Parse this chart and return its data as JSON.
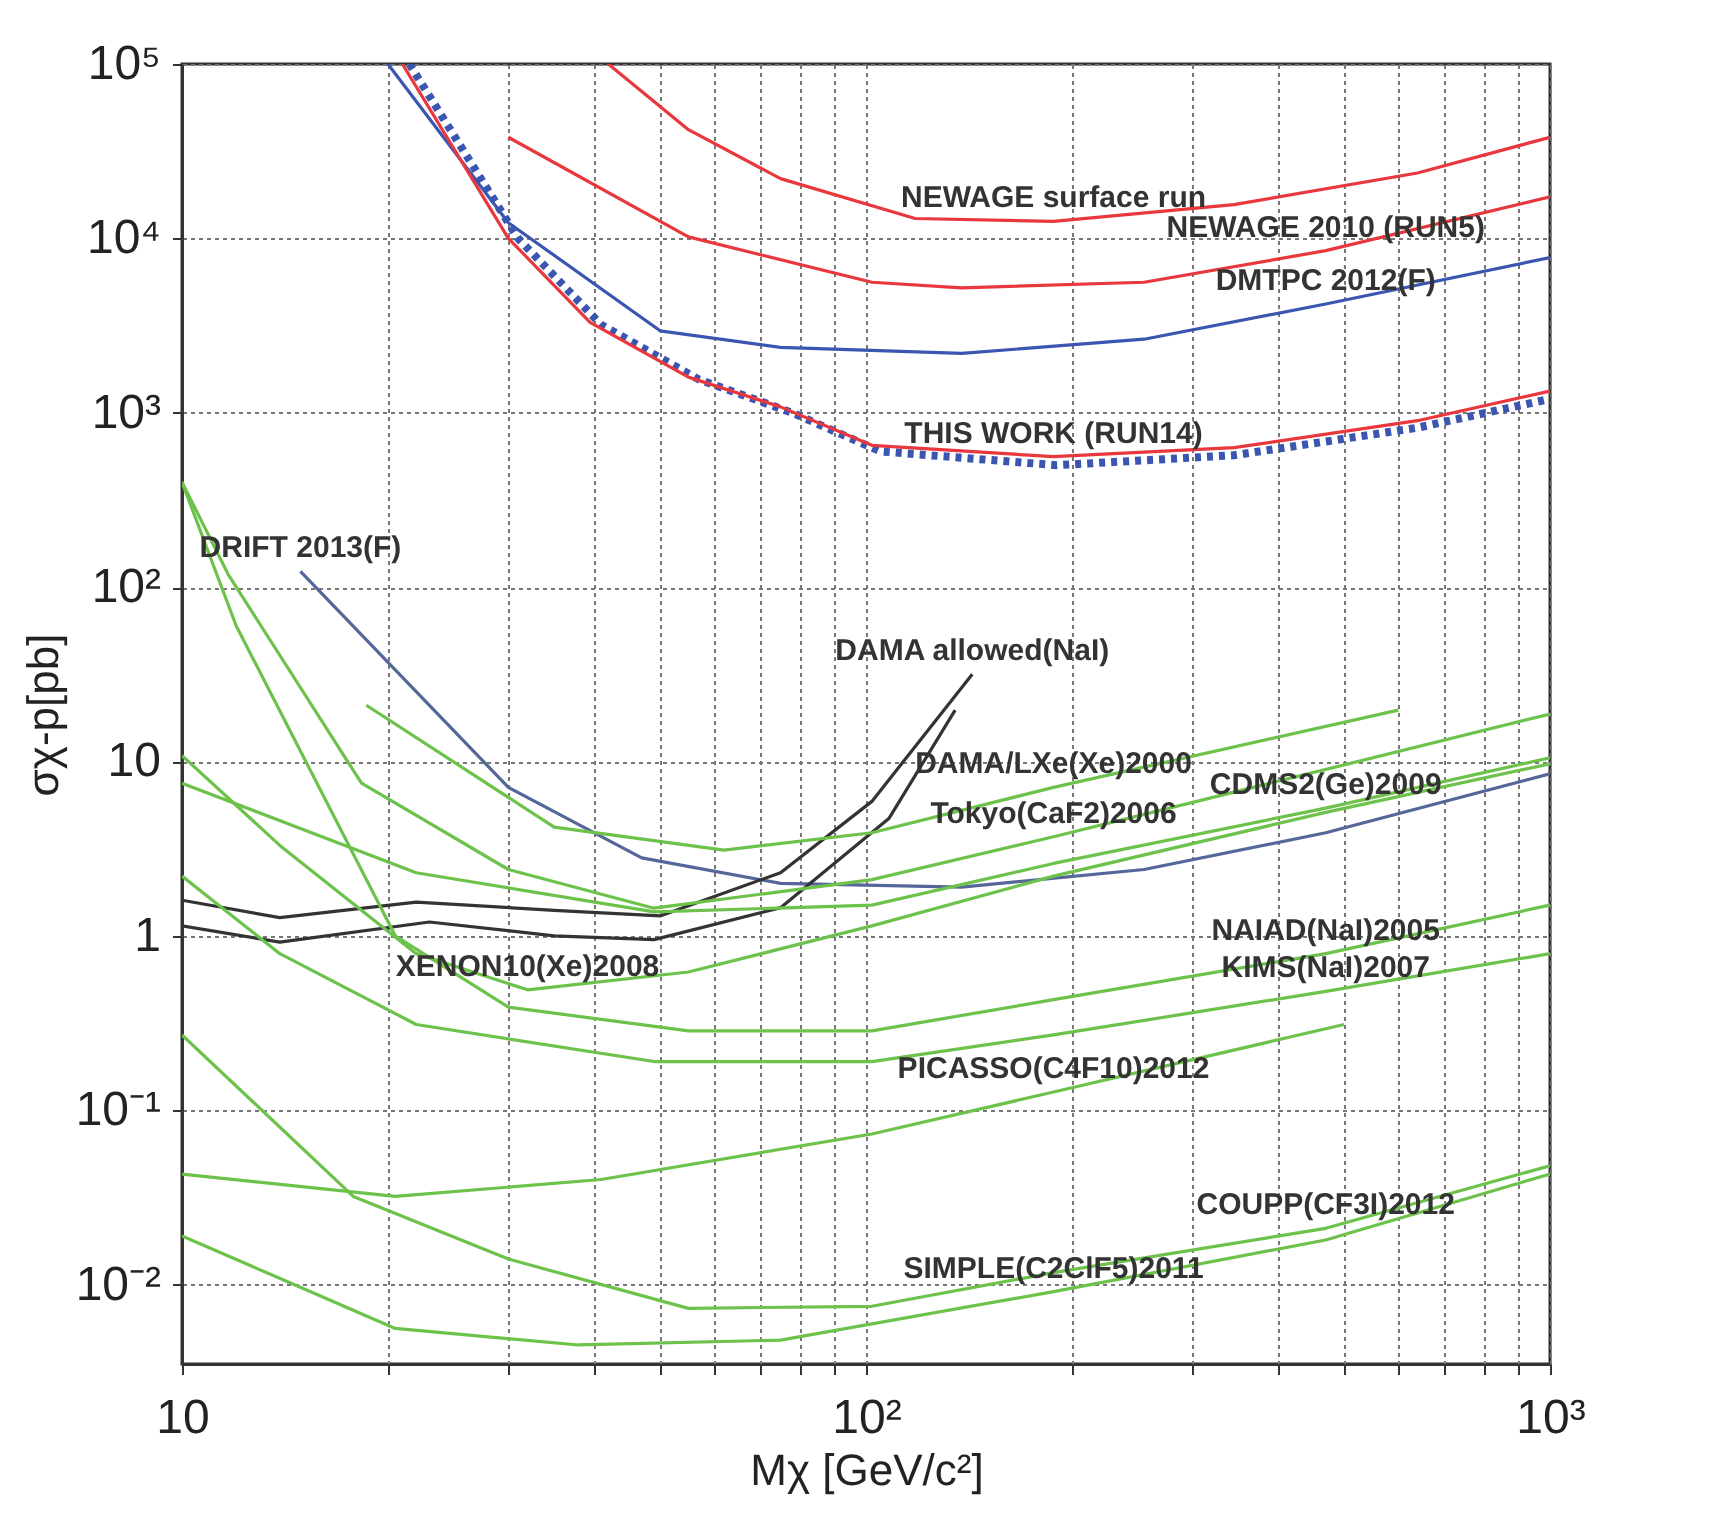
{
  "chart_data": {
    "type": "line",
    "xlabel": "Mχ [GeV/c²]",
    "ylabel": "σχ-p[pb]",
    "log": "xy",
    "grid": true,
    "xlim": [
      10,
      1000
    ],
    "ylim": [
      0.0035,
      100000
    ],
    "xticks": [
      10,
      {
        "value": 20,
        "label": null
      },
      {
        "value": 30,
        "label": null
      },
      {
        "value": 40,
        "label": null
      },
      {
        "value": 50,
        "label": null
      },
      {
        "value": 60,
        "label": null
      },
      {
        "value": 70,
        "label": null
      },
      {
        "value": 80,
        "label": null
      },
      {
        "value": 90,
        "label": null
      },
      {
        "value": 100,
        "label": "10²"
      },
      {
        "value": 200,
        "label": null
      },
      {
        "value": 300,
        "label": null
      },
      {
        "value": 400,
        "label": null
      },
      {
        "value": 500,
        "label": null
      },
      {
        "value": 600,
        "label": null
      },
      {
        "value": 700,
        "label": null
      },
      {
        "value": 800,
        "label": null
      },
      {
        "value": 900,
        "label": null
      },
      {
        "value": 1000,
        "label": "10³"
      }
    ],
    "yticks": [
      {
        "value": 0.01,
        "label": "10⁻²"
      },
      {
        "value": 0.1,
        "label": "10⁻¹"
      },
      1,
      10,
      {
        "value": 100,
        "label": "10²"
      },
      {
        "value": 1000,
        "label": "10³"
      },
      {
        "value": 10000,
        "label": "10⁴"
      },
      {
        "value": 100000,
        "label": "10⁵"
      }
    ],
    "series": [
      {
        "color": "#e8383d",
        "x": [
          42,
          55,
          75,
          118,
          188,
          345,
          640,
          1000
        ],
        "values": [
          100000,
          42000,
          22000,
          13000,
          12500,
          15600,
          23700,
          38000
        ]
      },
      {
        "color": "#e8383d",
        "x": [
          30,
          55,
          102,
          138,
          255,
          470,
          1000
        ],
        "values": [
          38000,
          10200,
          5600,
          5200,
          5600,
          8500,
          17300
        ]
      },
      {
        "color": "#3a56b0",
        "x": [
          20,
          30,
          50,
          75,
          138,
          255,
          470,
          1000
        ],
        "values": [
          100000,
          12300,
          2950,
          2370,
          2190,
          2640,
          4200,
          7760
        ]
      },
      {
        "color": "#3a56b0",
        "line_style": "dotted",
        "x": [
          21.5,
          31,
          41,
          57,
          78,
          105,
          190,
          345,
          640,
          1000
        ],
        "values": [
          100000,
          10000,
          3200,
          1550,
          1000,
          600,
          500,
          570,
          820,
          1200
        ]
      },
      {
        "color": "#e8383d",
        "x": [
          21,
          30,
          39.5,
          55,
          75,
          102,
          188,
          345,
          640,
          1000
        ],
        "values": [
          100000,
          10000,
          3300,
          1600,
          1080,
          650,
          560,
          630,
          900,
          1330
        ]
      },
      {
        "color": "#556699",
        "x": [
          14.9,
          30,
          47,
          75,
          138,
          255,
          470,
          1000
        ],
        "values": [
          123,
          7.1,
          2.8,
          2.0,
          1.9,
          2.4,
          3.9,
          8.5
        ]
      },
      {
        "color": "#333333",
        "x": [
          10,
          13.9,
          22,
          35,
          50,
          75,
          102,
          143
        ],
        "values": [
          1.6,
          1.27,
          1.56,
          1.4,
          1.3,
          2.3,
          5.9,
          31.6
        ]
      },
      {
        "color": "#333333",
        "x": [
          10,
          13.9,
          23,
          35,
          49,
          75,
          108,
          135
        ],
        "values": [
          1.14,
          0.92,
          1.2,
          1.0,
          0.95,
          1.45,
          4.7,
          19.7
        ]
      },
      {
        "color": "#6cc24a",
        "x": [
          18.6,
          35,
          62,
          102,
          188,
          600
        ],
        "values": [
          21,
          4.2,
          3.1,
          3.9,
          7.1,
          19.7
        ]
      },
      {
        "color": "#6cc24a",
        "x": [
          10,
          11.7,
          18.3,
          30,
          49,
          102,
          188,
          1000
        ],
        "values": [
          400,
          117,
          7.5,
          2.4,
          1.44,
          2.1,
          3.7,
          18.7
        ]
      },
      {
        "color": "#6cc24a",
        "x": [
          10,
          13.9,
          22,
          32,
          55,
          102,
          188,
          470,
          1000
        ],
        "values": [
          10.8,
          3.3,
          0.79,
          0.49,
          0.62,
          1.14,
          2.2,
          5.1,
          9.7
        ]
      },
      {
        "color": "#6cc24a",
        "x": [
          10,
          22,
          49,
          102,
          188,
          470,
          1000
        ],
        "values": [
          7.5,
          2.3,
          1.37,
          1.5,
          2.6,
          5.4,
          10.5
        ]
      },
      {
        "color": "#6cc24a",
        "x": [
          10,
          12,
          20.5,
          30,
          55,
          102,
          188,
          470,
          1000
        ],
        "values": [
          400,
          60,
          1.0,
          0.39,
          0.285,
          0.285,
          0.43,
          0.79,
          1.5
        ]
      },
      {
        "color": "#6cc24a",
        "x": [
          10,
          13.9,
          22,
          49,
          102,
          188,
          470,
          1000
        ],
        "values": [
          2.2,
          0.79,
          0.31,
          0.19,
          0.19,
          0.27,
          0.48,
          0.79
        ]
      },
      {
        "color": "#6cc24a",
        "x": [
          10,
          20.5,
          41,
          102,
          188,
          500
        ],
        "values": [
          0.043,
          0.032,
          0.04,
          0.073,
          0.127,
          0.31
        ]
      },
      {
        "color": "#6cc24a",
        "x": [
          10,
          17.8,
          30,
          55,
          102,
          188,
          470,
          1000
        ],
        "values": [
          0.27,
          0.032,
          0.014,
          0.0073,
          0.0075,
          0.0117,
          0.021,
          0.048
        ]
      },
      {
        "color": "#6cc24a",
        "x": [
          10,
          20.5,
          38,
          75,
          188,
          470,
          1000
        ],
        "values": [
          0.019,
          0.0056,
          0.0045,
          0.0048,
          0.0091,
          0.018,
          0.043
        ]
      }
    ],
    "annotations": [
      {
        "text": "NEWAGE surface run",
        "x": 188,
        "y": 12500
      },
      {
        "text": "NEWAGE 2010 (RUN5)",
        "x": 470,
        "y": 8500
      },
      {
        "text": "DMTPC 2012(F)",
        "x": 470,
        "y": 4200
      },
      {
        "text": "THIS WORK (RUN14)",
        "x": 188,
        "y": 560
      },
      {
        "text": "DRIFT 2013(F)",
        "x": 14.9,
        "y": 123
      },
      {
        "text": "DAMA allowed(NaI)",
        "x": 143,
        "y": 31.6
      },
      {
        "text": "DAMA/LXe(Xe)2000",
        "x": 188,
        "y": 7.1
      },
      {
        "text": "Tokyo(CaF2)2006",
        "x": 188,
        "y": 3.7
      },
      {
        "text": "CDMS2(Ge)2009",
        "x": 470,
        "y": 5.4
      },
      {
        "text": "XENON10(Xe)2008",
        "x": 32,
        "y": 0.49
      },
      {
        "text": "NAIAD(NaI)2005",
        "x": 470,
        "y": 0.79
      },
      {
        "text": "KIMS(NaI)2007",
        "x": 470,
        "y": 0.48
      },
      {
        "text": "PICASSO(C4F10)2012",
        "x": 188,
        "y": 0.127
      },
      {
        "text": "COUPP(CF3I)2012",
        "x": 470,
        "y": 0.021
      },
      {
        "text": "SIMPLE(C2ClF5)2011",
        "x": 188,
        "y": 0.0091
      }
    ]
  }
}
